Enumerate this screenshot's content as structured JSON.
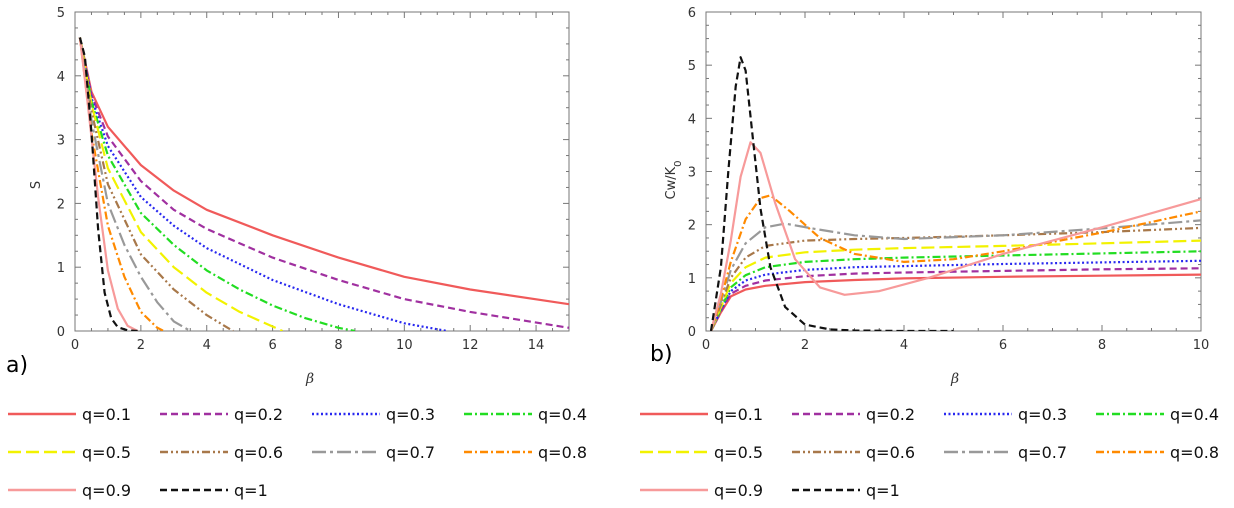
{
  "chart_data": [
    {
      "type": "line",
      "panel_label": "a)",
      "xlabel": "β",
      "ylabel": "S",
      "xlim": [
        0,
        15
      ],
      "ylim": [
        0,
        5
      ],
      "xticks": [
        0,
        2,
        4,
        6,
        8,
        10,
        12,
        14
      ],
      "yticks": [
        0,
        1,
        2,
        3,
        4,
        5
      ],
      "series": [
        {
          "name": "q=0.1",
          "color": "#f05a5a",
          "dash": "solid",
          "x": [
            0.15,
            0.5,
            1,
            2,
            3,
            4,
            6,
            8,
            10,
            12,
            15
          ],
          "y": [
            4.6,
            3.75,
            3.2,
            2.6,
            2.2,
            1.9,
            1.5,
            1.15,
            0.85,
            0.65,
            0.42
          ]
        },
        {
          "name": "q=0.2",
          "color": "#a030a0",
          "dash": "dashed",
          "x": [
            0.15,
            0.5,
            1,
            2,
            3,
            4,
            6,
            8,
            10,
            12,
            15
          ],
          "y": [
            4.6,
            3.7,
            3.05,
            2.35,
            1.9,
            1.6,
            1.15,
            0.8,
            0.5,
            0.3,
            0.05
          ]
        },
        {
          "name": "q=0.3",
          "color": "#2828f0",
          "dash": "dotted",
          "x": [
            0.15,
            0.5,
            1,
            2,
            3,
            4,
            6,
            8,
            10,
            11.3
          ],
          "y": [
            4.6,
            3.65,
            2.9,
            2.1,
            1.65,
            1.3,
            0.8,
            0.42,
            0.12,
            0
          ]
        },
        {
          "name": "q=0.4",
          "color": "#22dd22",
          "dash": "dashdot",
          "x": [
            0.15,
            0.5,
            1,
            2,
            3,
            4,
            5,
            6,
            7,
            8,
            8.5
          ],
          "y": [
            4.6,
            3.6,
            2.75,
            1.85,
            1.35,
            0.95,
            0.65,
            0.4,
            0.2,
            0.05,
            0
          ]
        },
        {
          "name": "q=0.5",
          "color": "#f2f200",
          "dash": "longdash",
          "x": [
            0.15,
            0.5,
            1,
            2,
            3,
            4,
            5,
            6,
            6.3
          ],
          "y": [
            4.6,
            3.55,
            2.55,
            1.55,
            1.0,
            0.6,
            0.3,
            0.07,
            0
          ]
        },
        {
          "name": "q=0.6",
          "color": "#a8784a",
          "dash": "dashdotdot",
          "x": [
            0.15,
            0.5,
            1,
            2,
            3,
            4,
            4.8
          ],
          "y": [
            4.6,
            3.45,
            2.3,
            1.2,
            0.65,
            0.25,
            0
          ]
        },
        {
          "name": "q=0.7",
          "color": "#999999",
          "dash": "longdashdot",
          "x": [
            0.15,
            0.5,
            1,
            1.5,
            2,
            2.5,
            3,
            3.5
          ],
          "y": [
            4.6,
            3.3,
            2.0,
            1.35,
            0.85,
            0.45,
            0.15,
            0
          ]
        },
        {
          "name": "q=0.8",
          "color": "#ff8a00",
          "dash": "dashdot",
          "x": [
            0.15,
            0.5,
            1,
            1.5,
            2,
            2.5,
            2.7
          ],
          "y": [
            4.6,
            3.1,
            1.65,
            0.85,
            0.3,
            0.05,
            0
          ]
        },
        {
          "name": "q=0.9",
          "color": "#f79a9a",
          "dash": "solid",
          "x": [
            0.15,
            0.4,
            0.7,
            1,
            1.3,
            1.6,
            1.9
          ],
          "y": [
            4.6,
            3.5,
            2.1,
            0.95,
            0.35,
            0.08,
            0
          ]
        },
        {
          "name": "q=1",
          "color": "#111111",
          "dash": "dashed",
          "x": [
            0.15,
            0.3,
            0.5,
            0.7,
            0.9,
            1.1,
            1.3,
            1.6,
            1.9
          ],
          "y": [
            4.6,
            4.3,
            3.1,
            1.6,
            0.6,
            0.2,
            0.06,
            0.01,
            0
          ]
        }
      ]
    },
    {
      "type": "line",
      "panel_label": "b)",
      "xlabel": "β",
      "ylabel": "Cw/K",
      "ylabel_sub": "0",
      "xlim": [
        0,
        10
      ],
      "ylim": [
        0,
        6
      ],
      "xticks": [
        0,
        2,
        4,
        6,
        8,
        10
      ],
      "yticks": [
        0,
        1,
        2,
        3,
        4,
        5,
        6
      ],
      "series": [
        {
          "name": "q=0.1",
          "color": "#f05a5a",
          "dash": "solid",
          "x": [
            0.1,
            0.3,
            0.5,
            0.8,
            1.2,
            2,
            3,
            4,
            6,
            8,
            10
          ],
          "y": [
            0,
            0.35,
            0.65,
            0.78,
            0.85,
            0.92,
            0.96,
            0.99,
            1.02,
            1.04,
            1.06
          ]
        },
        {
          "name": "q=0.2",
          "color": "#a030a0",
          "dash": "dashed",
          "x": [
            0.1,
            0.3,
            0.5,
            0.8,
            1.2,
            2,
            3,
            4,
            6,
            8,
            10
          ],
          "y": [
            0,
            0.37,
            0.7,
            0.85,
            0.95,
            1.03,
            1.08,
            1.1,
            1.13,
            1.16,
            1.18
          ]
        },
        {
          "name": "q=0.3",
          "color": "#2828f0",
          "dash": "dotted",
          "x": [
            0.1,
            0.3,
            0.5,
            0.8,
            1.2,
            2,
            3,
            4,
            6,
            8,
            10
          ],
          "y": [
            0,
            0.4,
            0.75,
            0.95,
            1.06,
            1.15,
            1.2,
            1.22,
            1.26,
            1.29,
            1.32
          ]
        },
        {
          "name": "q=0.4",
          "color": "#22dd22",
          "dash": "dashdot",
          "x": [
            0.1,
            0.3,
            0.5,
            0.8,
            1.2,
            2,
            3,
            4,
            6,
            8,
            10
          ],
          "y": [
            0,
            0.42,
            0.82,
            1.05,
            1.2,
            1.3,
            1.35,
            1.38,
            1.42,
            1.46,
            1.5
          ]
        },
        {
          "name": "q=0.5",
          "color": "#f2f200",
          "dash": "longdash",
          "x": [
            0.1,
            0.3,
            0.5,
            0.8,
            1.2,
            2,
            3,
            4,
            6,
            8,
            10
          ],
          "y": [
            0,
            0.45,
            0.9,
            1.2,
            1.38,
            1.48,
            1.53,
            1.56,
            1.6,
            1.65,
            1.7
          ]
        },
        {
          "name": "q=0.6",
          "color": "#a8784a",
          "dash": "dashdotdot",
          "x": [
            0.1,
            0.3,
            0.5,
            0.8,
            1.2,
            2,
            3,
            4,
            6,
            8,
            10
          ],
          "y": [
            0,
            0.5,
            1.0,
            1.38,
            1.6,
            1.7,
            1.73,
            1.75,
            1.8,
            1.86,
            1.94
          ]
        },
        {
          "name": "q=0.7",
          "color": "#999999",
          "dash": "longdashdot",
          "x": [
            0.1,
            0.3,
            0.5,
            0.8,
            1.2,
            1.6,
            2.2,
            3,
            4,
            6,
            8,
            10
          ],
          "y": [
            0,
            0.55,
            1.15,
            1.65,
            1.95,
            2.02,
            1.92,
            1.8,
            1.73,
            1.8,
            1.93,
            2.08
          ]
        },
        {
          "name": "q=0.8",
          "color": "#ff8a00",
          "dash": "dashdot",
          "x": [
            0.1,
            0.3,
            0.5,
            0.8,
            1.1,
            1.3,
            1.7,
            2.3,
            3,
            4,
            5,
            6,
            8,
            10
          ],
          "y": [
            0,
            0.6,
            1.3,
            2.1,
            2.5,
            2.55,
            2.25,
            1.75,
            1.45,
            1.3,
            1.35,
            1.5,
            1.85,
            2.25
          ]
        },
        {
          "name": "q=0.9",
          "color": "#f79a9a",
          "dash": "solid",
          "x": [
            0.1,
            0.3,
            0.5,
            0.7,
            0.9,
            1.1,
            1.4,
            1.8,
            2.3,
            2.8,
            3.5,
            4.5,
            6,
            8,
            10
          ],
          "y": [
            0,
            0.7,
            1.7,
            2.9,
            3.55,
            3.35,
            2.4,
            1.35,
            0.82,
            0.68,
            0.75,
            1.0,
            1.45,
            1.95,
            2.48
          ]
        },
        {
          "name": "q=1",
          "color": "#111111",
          "dash": "dashed",
          "x": [
            0.1,
            0.3,
            0.45,
            0.6,
            0.7,
            0.8,
            0.95,
            1.1,
            1.3,
            1.6,
            2,
            2.5,
            3,
            4,
            5
          ],
          "y": [
            0,
            1.2,
            3.0,
            4.6,
            5.15,
            4.9,
            3.6,
            2.3,
            1.2,
            0.45,
            0.12,
            0.03,
            0.01,
            0,
            0
          ]
        }
      ]
    }
  ]
}
